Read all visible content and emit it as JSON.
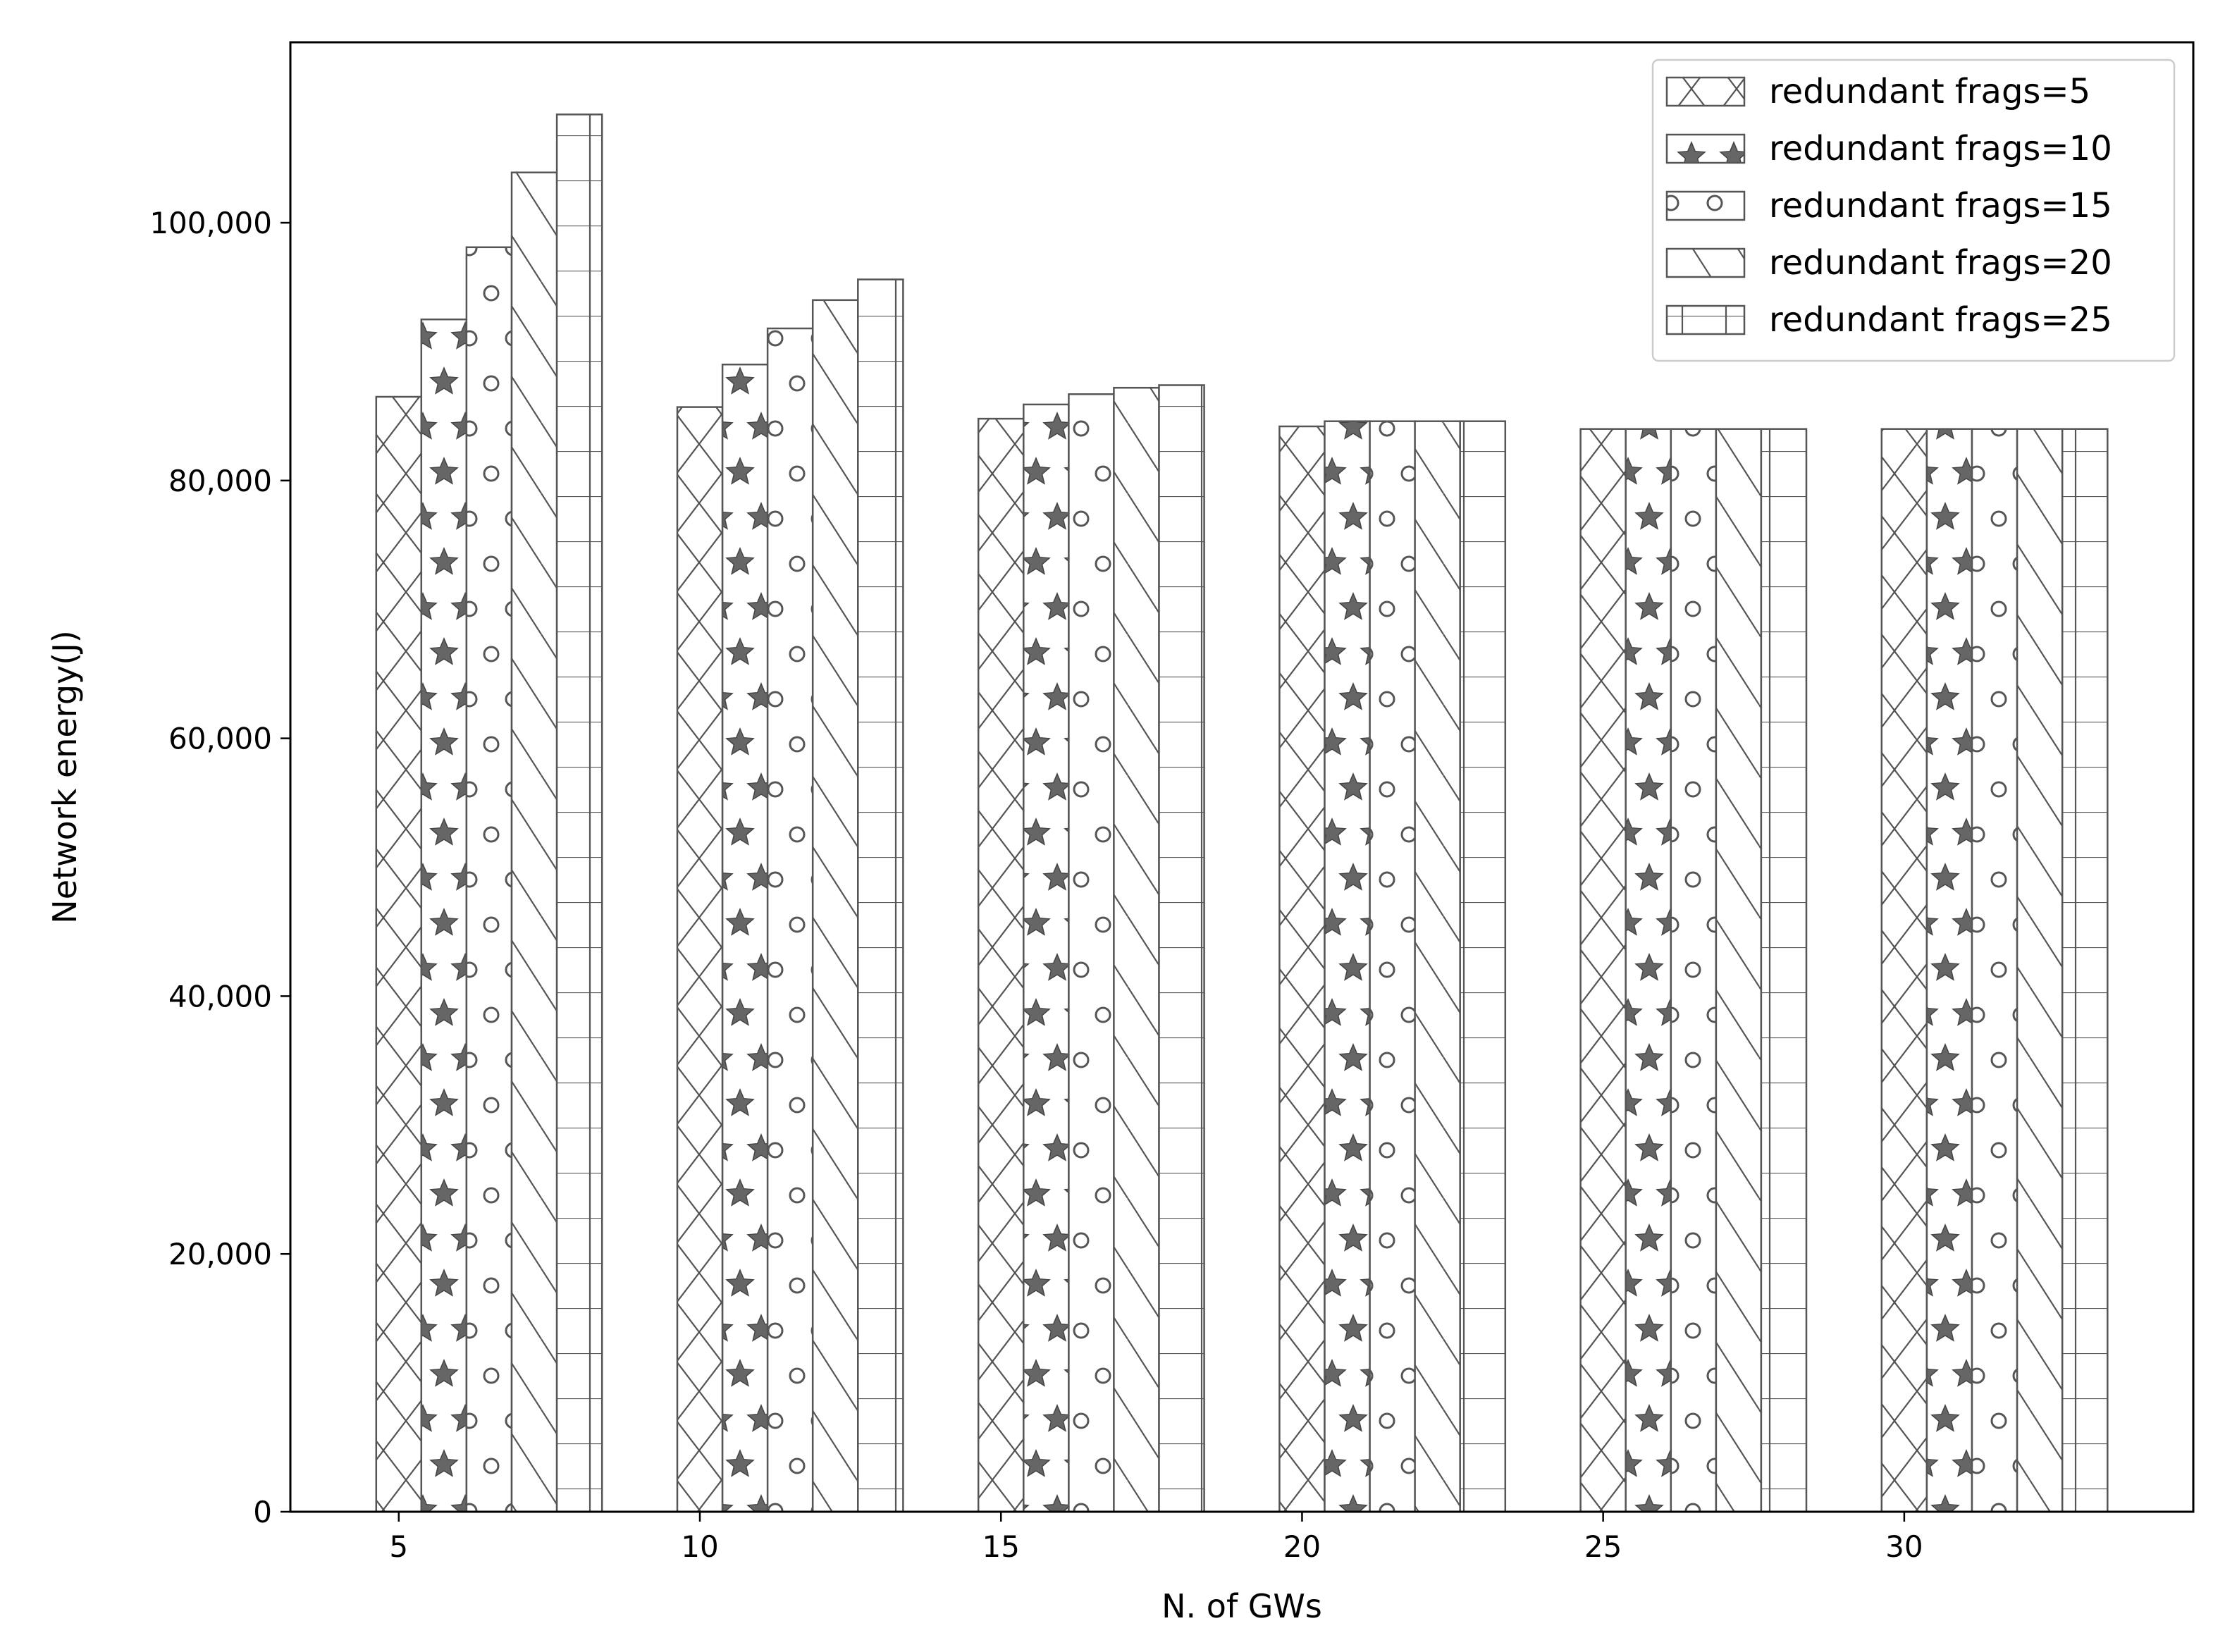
{
  "chart_data": {
    "type": "bar",
    "xlabel": "N. of GWs",
    "ylabel": "Network energy(J)",
    "categories": [
      "5",
      "10",
      "15",
      "20",
      "25",
      "30"
    ],
    "x_values": [
      5,
      10,
      15,
      20,
      25,
      30
    ],
    "xlim": [
      3.2,
      34.8
    ],
    "ylim": [
      0,
      114000
    ],
    "yticks": [
      0,
      20000,
      40000,
      60000,
      80000,
      100000
    ],
    "ytick_labels": [
      "0",
      "20,000",
      "40,000",
      "60,000",
      "80,000",
      "100,000"
    ],
    "xticks": [
      5,
      10,
      15,
      20,
      25,
      30
    ],
    "xtick_labels": [
      "5",
      "10",
      "15",
      "20",
      "25",
      "30"
    ],
    "grid": false,
    "legend_position": "top-right",
    "bar_fill": "#ffffff",
    "bar_edge": "#555555",
    "series": [
      {
        "name": "redundant frags=5",
        "hatch": "x",
        "values": [
          86500,
          85700,
          84800,
          84200,
          84000,
          84000
        ]
      },
      {
        "name": "redundant frags=10",
        "hatch": "*",
        "values": [
          92500,
          89000,
          85900,
          84600,
          84000,
          84000
        ]
      },
      {
        "name": "redundant frags=15",
        "hatch": "o",
        "values": [
          98100,
          91800,
          86700,
          84600,
          84000,
          84000
        ]
      },
      {
        "name": "redundant frags=20",
        "hatch": "\\",
        "values": [
          103900,
          94000,
          87200,
          84600,
          84000,
          84000
        ]
      },
      {
        "name": "redundant frags=25",
        "hatch": "+",
        "values": [
          108400,
          95600,
          87400,
          84600,
          84000,
          84000
        ]
      }
    ]
  }
}
